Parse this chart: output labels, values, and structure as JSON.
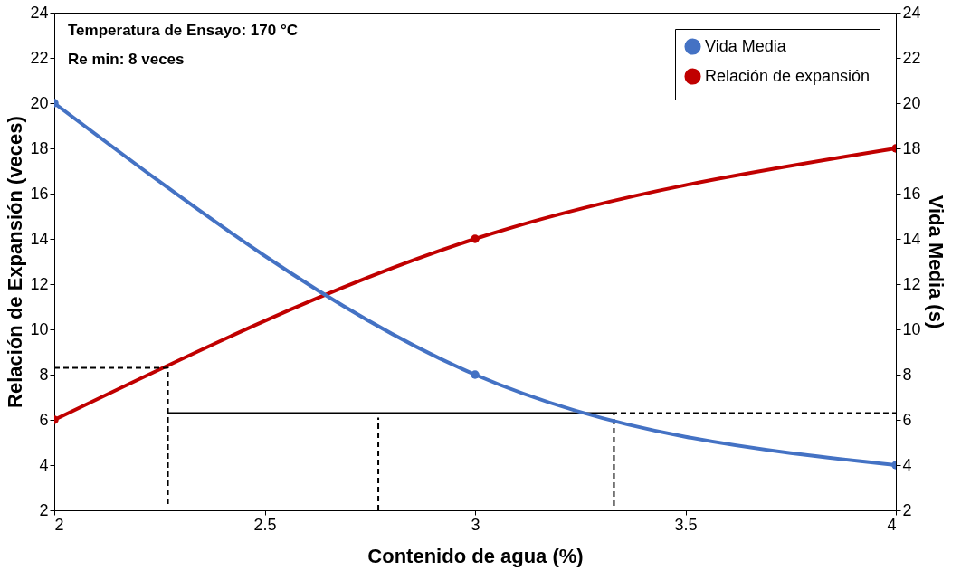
{
  "chart_data": {
    "type": "line",
    "xlabel": "Contenido de agua (%)",
    "ylabel": "Relación de Expansión (veces)",
    "y2label": "Vida Media (s)",
    "xlim": [
      2,
      4
    ],
    "xticks": [
      2,
      2.5,
      3,
      3.5,
      4
    ],
    "ylim": [
      2,
      24
    ],
    "yticks": [
      2,
      4,
      6,
      8,
      10,
      12,
      14,
      16,
      18,
      20,
      22,
      24
    ],
    "y2lim": [
      2,
      24
    ],
    "y2ticks": [
      2,
      4,
      6,
      8,
      10,
      12,
      14,
      16,
      18,
      20,
      22,
      24
    ],
    "grid": false,
    "legend": "top right",
    "annotations": [
      "Temperatura de Ensayo: 170 °C",
      "Re min: 8 veces"
    ],
    "series": [
      {
        "name": "Vida Media",
        "color": "#4472c4",
        "axis": "y2",
        "marker": "circle",
        "line_style": "solid",
        "x": [
          2,
          3,
          4
        ],
        "values": [
          20,
          8,
          4
        ]
      },
      {
        "name": "Relación de expansión",
        "color": "#c00000",
        "marker": "circle",
        "line_style": "solid",
        "x": [
          2,
          3,
          4
        ],
        "values": [
          6,
          14,
          18
        ]
      },
      {
        "type": "line",
        "color": "#000000",
        "marker": "none",
        "line_style": "dashed",
        "x": [
          2,
          2.27,
          2.27
        ],
        "values": [
          8.3,
          8.3,
          2.2
        ]
      },
      {
        "type": "line",
        "color": "#000000",
        "marker": "none",
        "line_style": "solid",
        "x": [
          2.27,
          3.33
        ],
        "values": [
          6.3,
          6.3
        ]
      },
      {
        "type": "line",
        "color": "#000000",
        "marker": "none",
        "line_style": "dashed",
        "x": [
          2.77,
          2.77
        ],
        "values": [
          2,
          6.1
        ]
      },
      {
        "type": "line",
        "color": "#000000",
        "marker": "none",
        "line_style": "dashed",
        "x": [
          3.33,
          3.33,
          4
        ],
        "values": [
          2.2,
          6.3,
          6.3
        ]
      }
    ]
  }
}
